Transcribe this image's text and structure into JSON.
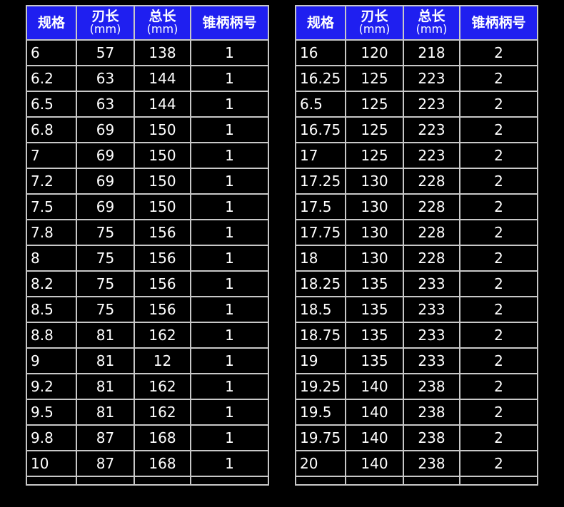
{
  "headers": [
    {
      "label": "规格",
      "unit": ""
    },
    {
      "label": "刃长",
      "unit": "(mm)"
    },
    {
      "label": "总长",
      "unit": "(mm)"
    },
    {
      "label": "锥柄柄号",
      "unit": ""
    }
  ],
  "colors": {
    "header_bg": "#1f1ff0",
    "background": "#000000",
    "grid": "#c8c8c8"
  },
  "left_table": [
    [
      "6",
      "57",
      "138",
      "1"
    ],
    [
      "6.2",
      "63",
      "144",
      "1"
    ],
    [
      "6.5",
      "63",
      "144",
      "1"
    ],
    [
      "6.8",
      "69",
      "150",
      "1"
    ],
    [
      "7",
      "69",
      "150",
      "1"
    ],
    [
      "7.2",
      "69",
      "150",
      "1"
    ],
    [
      "7.5",
      "69",
      "150",
      "1"
    ],
    [
      "7.8",
      "75",
      "156",
      "1"
    ],
    [
      "8",
      "75",
      "156",
      "1"
    ],
    [
      "8.2",
      "75",
      "156",
      "1"
    ],
    [
      "8.5",
      "75",
      "156",
      "1"
    ],
    [
      "8.8",
      "81",
      "162",
      "1"
    ],
    [
      "9",
      "81",
      "12",
      "1"
    ],
    [
      "9.2",
      "81",
      "162",
      "1"
    ],
    [
      "9.5",
      "81",
      "162",
      "1"
    ],
    [
      "9.8",
      "87",
      "168",
      "1"
    ],
    [
      "10",
      "87",
      "168",
      "1"
    ]
  ],
  "right_table": [
    [
      "16",
      "120",
      "218",
      "2"
    ],
    [
      "16.25",
      "125",
      "223",
      "2"
    ],
    [
      "6.5",
      "125",
      "223",
      "2"
    ],
    [
      "16.75",
      "125",
      "223",
      "2"
    ],
    [
      "17",
      "125",
      "223",
      "2"
    ],
    [
      "17.25",
      "130",
      "228",
      "2"
    ],
    [
      "17.5",
      "130",
      "228",
      "2"
    ],
    [
      "17.75",
      "130",
      "228",
      "2"
    ],
    [
      "18",
      "130",
      "228",
      "2"
    ],
    [
      "18.25",
      "135",
      "233",
      "2"
    ],
    [
      "18.5",
      "135",
      "233",
      "2"
    ],
    [
      "18.75",
      "135",
      "233",
      "2"
    ],
    [
      "19",
      "135",
      "233",
      "2"
    ],
    [
      "19.25",
      "140",
      "238",
      "2"
    ],
    [
      "19.5",
      "140",
      "238",
      "2"
    ],
    [
      "19.75",
      "140",
      "238",
      "2"
    ],
    [
      "20",
      "140",
      "238",
      "2"
    ]
  ]
}
